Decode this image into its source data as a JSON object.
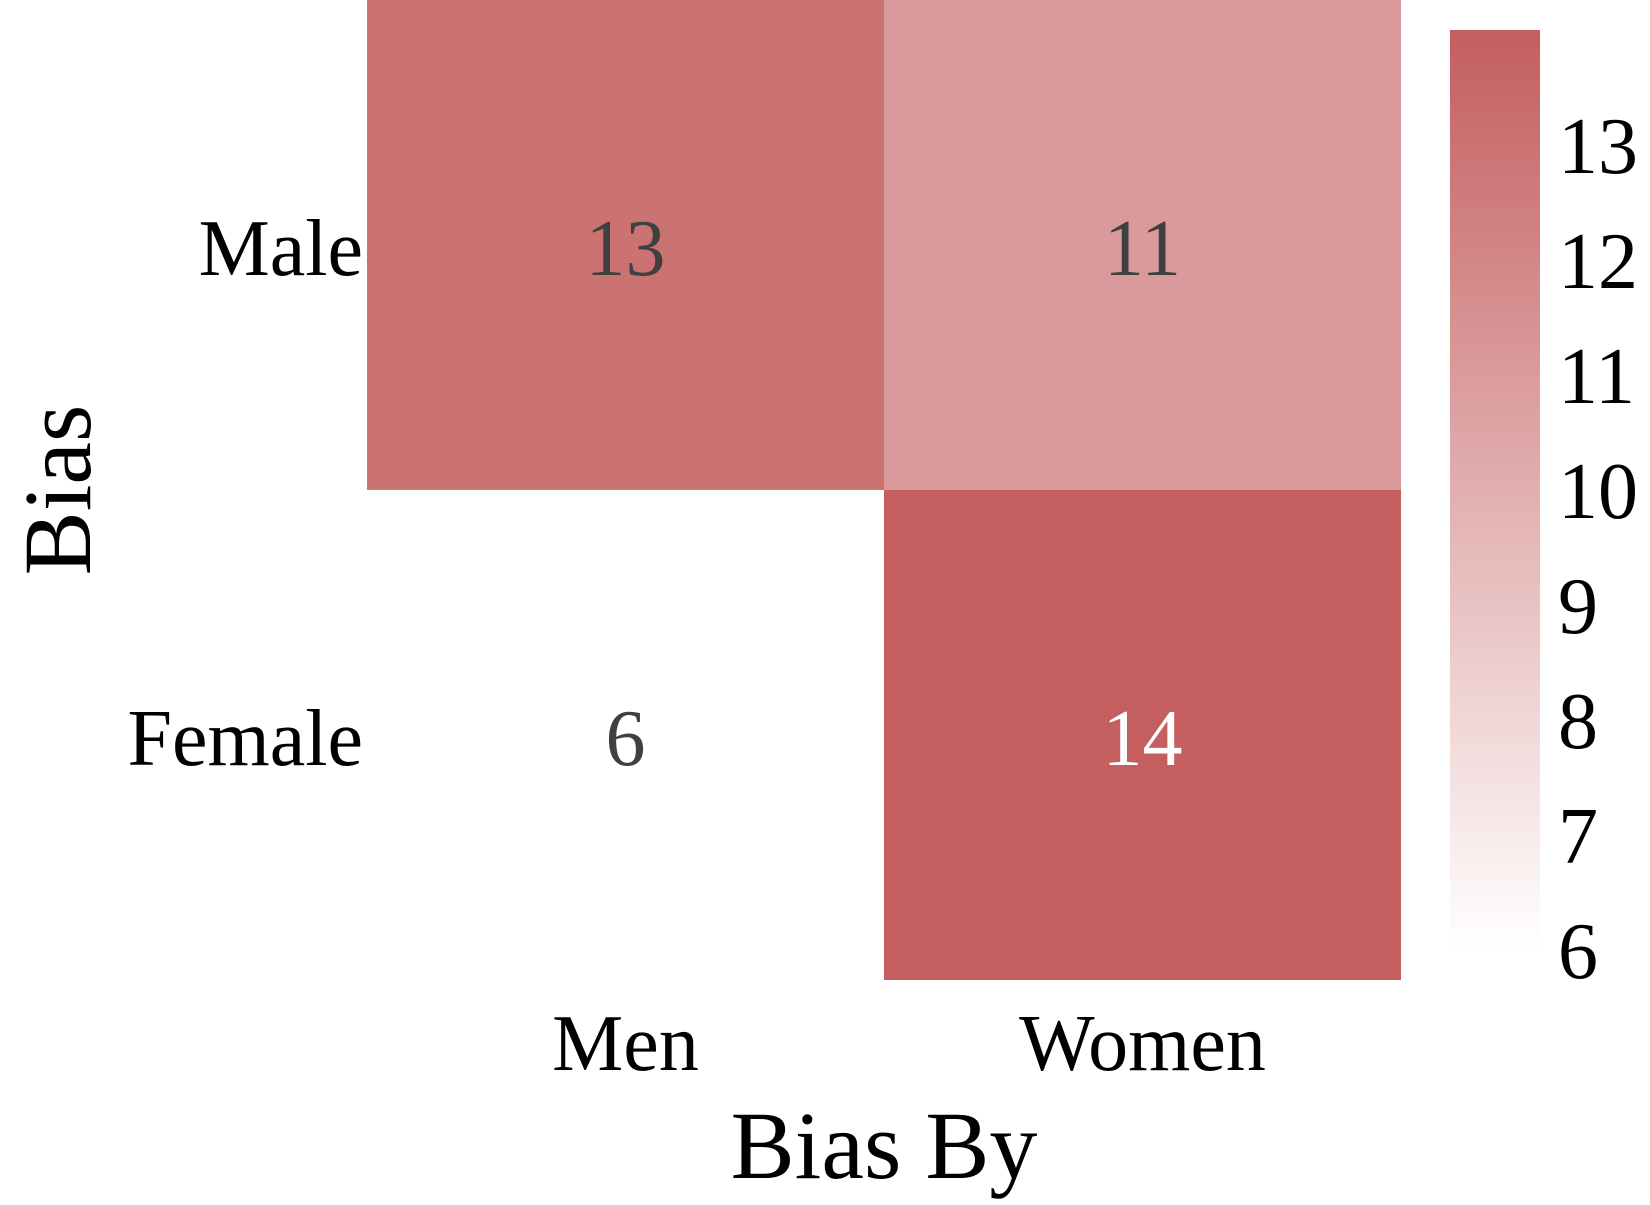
{
  "chart_data": {
    "type": "heatmap",
    "title": "",
    "xlabel": "Bias By",
    "ylabel": "Bias",
    "x_categories": [
      "Men",
      "Women"
    ],
    "y_categories": [
      "Male",
      "Female"
    ],
    "values": [
      [
        13,
        11
      ],
      [
        6,
        14
      ]
    ],
    "colorbar": {
      "min": 6,
      "max": 14,
      "ticks": [
        6,
        7,
        8,
        9,
        10,
        11,
        12,
        13
      ],
      "low_color": "#ffffff",
      "high_color": "#c45e5f"
    },
    "annotation_dark_color": "#404040",
    "annotation_light_color": "#ffffff",
    "grid": false
  }
}
